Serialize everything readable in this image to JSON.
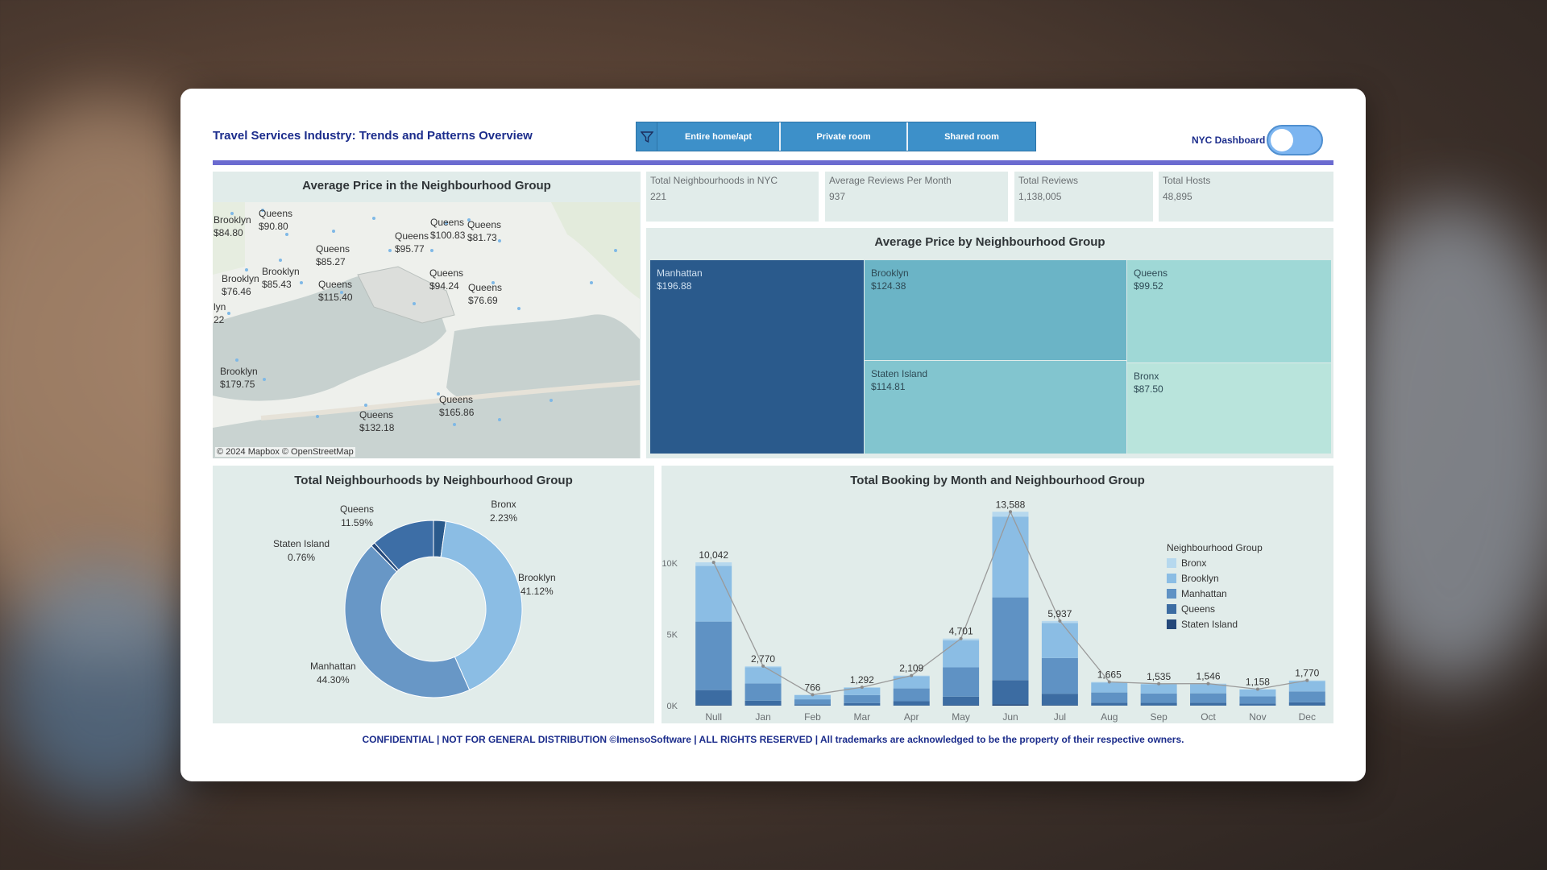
{
  "header": {
    "title": "Travel Services Industry: Trends and Patterns Overview",
    "filters": [
      "Entire home/apt",
      "Private room",
      "Shared room"
    ],
    "toggle_label": "NYC Dashboard"
  },
  "kpis": [
    {
      "label": "Total Neighbourhoods in NYC",
      "value": "221"
    },
    {
      "label": "Average Reviews Per Month",
      "value": "937"
    },
    {
      "label": "Total Reviews",
      "value": "1,138,005"
    },
    {
      "label": "Total Hosts",
      "value": "48,895"
    }
  ],
  "map_panel": {
    "title": "Average Price in the Neighbourhood Group",
    "credit": "© 2024 Mapbox © OpenStreetMap",
    "labels": [
      {
        "group": "Brooklyn",
        "price": "$84.80"
      },
      {
        "group": "Queens",
        "price": "$90.80"
      },
      {
        "group": "Queens",
        "price": "$100.83"
      },
      {
        "group": "Queens",
        "price": "$81.73"
      },
      {
        "group": "Queens",
        "price": "$95.77"
      },
      {
        "group": "Queens",
        "price": "$85.27"
      },
      {
        "group": "Brooklyn",
        "price": "$85.43"
      },
      {
        "group": "Brooklyn",
        "price": "$76.46"
      },
      {
        "group": "Queens",
        "price": "$115.40"
      },
      {
        "group": "Queens",
        "price": "$94.24"
      },
      {
        "group": "Queens",
        "price": "$76.69"
      },
      {
        "group": "lyn",
        "price": "22"
      },
      {
        "group": "Brooklyn",
        "price": "$179.75"
      },
      {
        "group": "Queens",
        "price": "$165.86"
      },
      {
        "group": "Queens",
        "price": "$132.18"
      }
    ]
  },
  "treemap": {
    "title": "Average Price by Neighbourhood Group",
    "items": [
      {
        "name": "Manhattan",
        "value": "$196.88",
        "color": "#2a5a8c"
      },
      {
        "name": "Brooklyn",
        "value": "$124.38",
        "color": "#6bb4c6"
      },
      {
        "name": "Queens",
        "value": "$99.52",
        "color": "#9fd8d6"
      },
      {
        "name": "Staten Island",
        "value": "$114.81",
        "color": "#82c5cf"
      },
      {
        "name": "Bronx",
        "value": "$87.50",
        "color": "#b9e4dc"
      }
    ]
  },
  "donut": {
    "title": "Total Neighbourhoods by Neighbourhood Group",
    "slices": [
      {
        "name": "Bronx",
        "pct": "2.23%",
        "value": 2.23,
        "color": "#2a5a8c"
      },
      {
        "name": "Brooklyn",
        "pct": "41.12%",
        "value": 41.12,
        "color": "#8bbde4"
      },
      {
        "name": "Manhattan",
        "pct": "44.30%",
        "value": 44.3,
        "color": "#6897c6"
      },
      {
        "name": "Staten Island",
        "pct": "0.76%",
        "value": 0.76,
        "color": "#25497a"
      },
      {
        "name": "Queens",
        "pct": "11.59%",
        "value": 11.59,
        "color": "#3d6ea6"
      }
    ]
  },
  "chart_data": {
    "type": "bar",
    "title": "Total Booking by Month and Neighbourhood Group",
    "categories": [
      "Null",
      "Jan",
      "Feb",
      "Mar",
      "Apr",
      "May",
      "Jun",
      "Jul",
      "Aug",
      "Sep",
      "Oct",
      "Nov",
      "Dec"
    ],
    "totals": [
      10042,
      2770,
      766,
      1292,
      2109,
      4701,
      13588,
      5937,
      1665,
      1535,
      1546,
      1158,
      1770
    ],
    "total_labels": [
      "10,042",
      "2,770",
      "766",
      "1,292",
      "2,109",
      "4,701",
      "13,588",
      "5,937",
      "1,665",
      "1,535",
      "1,546",
      "1,158",
      "1,770"
    ],
    "ylim": [
      0,
      14000
    ],
    "yticks": [
      {
        "v": 0,
        "label": "0K"
      },
      {
        "v": 5000,
        "label": "5K"
      },
      {
        "v": 10000,
        "label": "10K"
      }
    ],
    "legend_title": "Neighbourhood Group",
    "legend_position": "right",
    "series": [
      {
        "name": "Bronx",
        "color": "#b6d8ee",
        "values": [
          250,
          70,
          20,
          30,
          50,
          120,
          350,
          150,
          40,
          40,
          40,
          30,
          45
        ]
      },
      {
        "name": "Brooklyn",
        "color": "#8bbde4",
        "values": [
          3900,
          1150,
          300,
          520,
          850,
          1900,
          5650,
          2450,
          700,
          640,
          640,
          480,
          730
        ]
      },
      {
        "name": "Manhattan",
        "color": "#5f92c4",
        "values": [
          4800,
          1200,
          350,
          560,
          900,
          2050,
          5800,
          2500,
          720,
          660,
          660,
          500,
          760
        ]
      },
      {
        "name": "Queens",
        "color": "#3c6ca2",
        "values": [
          1050,
          330,
          90,
          170,
          290,
          600,
          1700,
          800,
          190,
          180,
          190,
          140,
          220
        ]
      },
      {
        "name": "Staten Island",
        "color": "#24487a",
        "values": [
          42,
          20,
          6,
          12,
          19,
          31,
          88,
          37,
          15,
          15,
          16,
          8,
          15
        ]
      }
    ]
  }
}
